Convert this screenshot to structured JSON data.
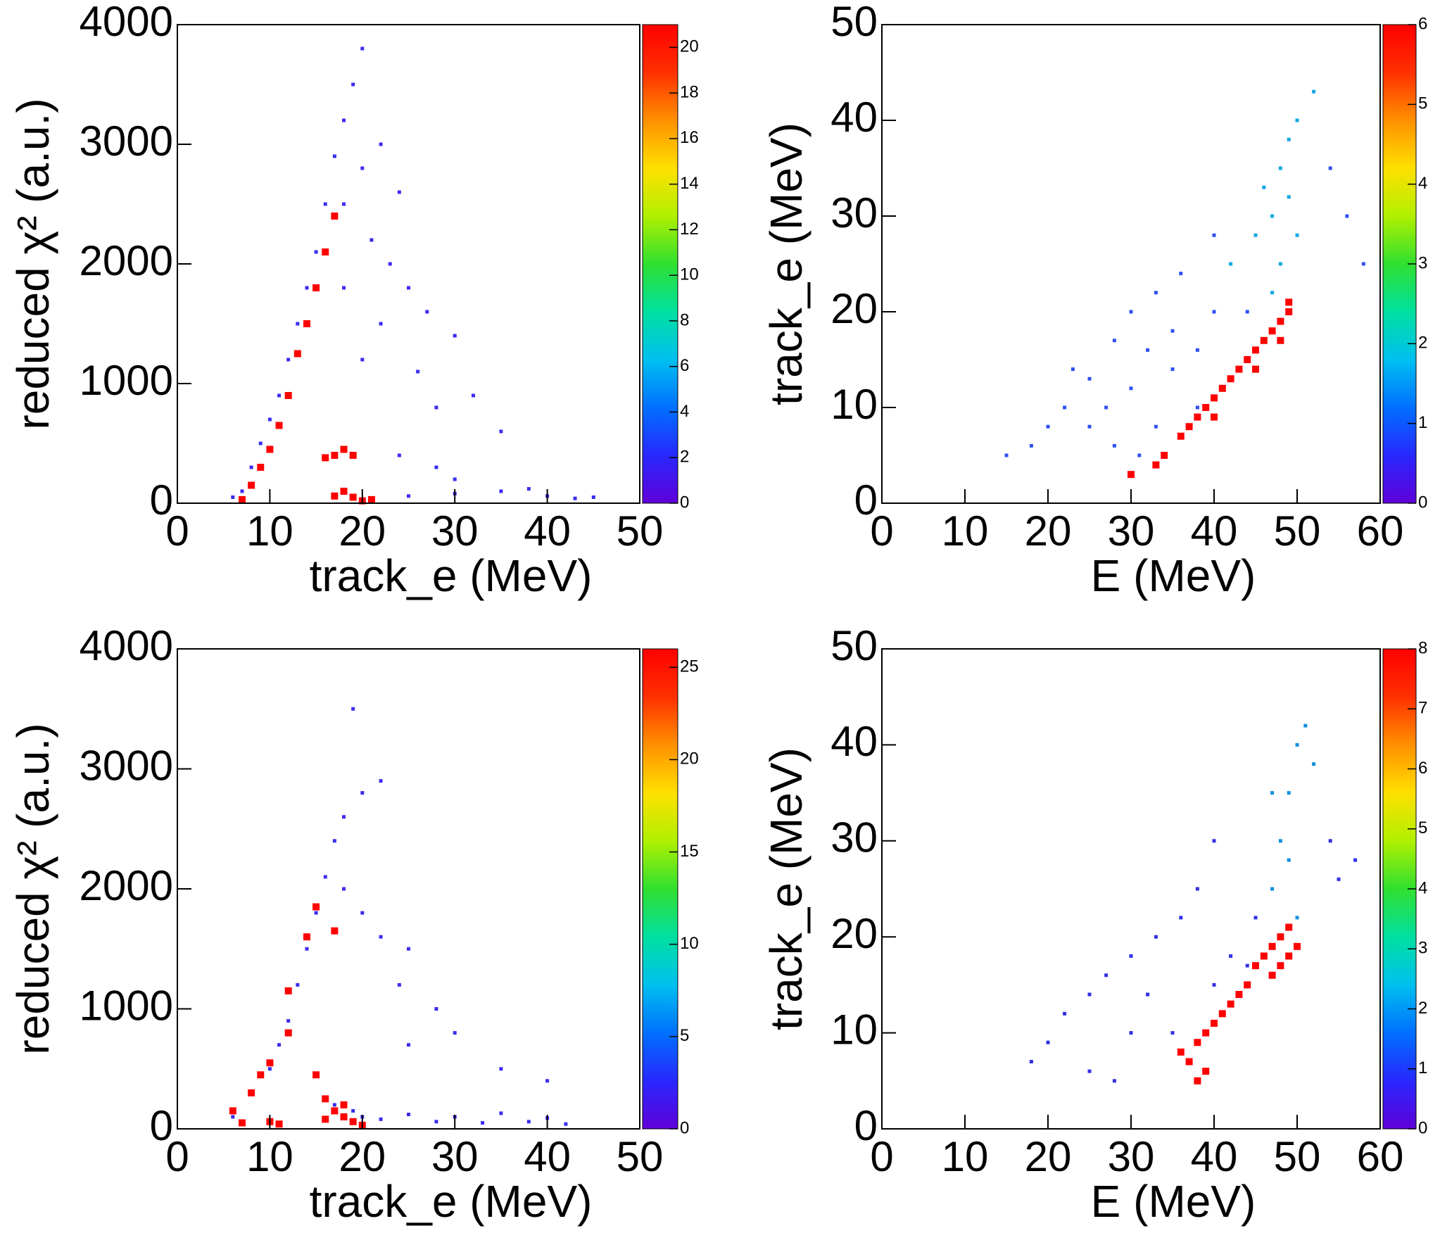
{
  "chart_data": [
    {
      "type": "scatter",
      "xlabel": "track_e (MeV)",
      "ylabel": "reduced χ² (a.u.)",
      "xlim": [
        0,
        50
      ],
      "ylim": [
        0,
        4000
      ],
      "xticks": [
        0,
        10,
        20,
        30,
        40,
        50
      ],
      "yticks": [
        0,
        1000,
        2000,
        3000,
        4000
      ],
      "zlim": [
        0,
        21
      ],
      "zticks": [
        0,
        2,
        4,
        6,
        8,
        10,
        12,
        14,
        16,
        18,
        20
      ],
      "colormap": [
        "#6000d8",
        "#2828ff",
        "#0070ff",
        "#00c0f0",
        "#00e0a0",
        "#30e030",
        "#b0f000",
        "#ffe000",
        "#ff9000",
        "#ff3000",
        "#ff0000"
      ],
      "series": [
        {
          "color": "#3c2cf0",
          "x": [
            6,
            7,
            8,
            9,
            10,
            11,
            12,
            13,
            14,
            15,
            16,
            17,
            18,
            19,
            20,
            18,
            20,
            22,
            24,
            21,
            23,
            25,
            27,
            30,
            22,
            26,
            28,
            32,
            35,
            24,
            28,
            30,
            25,
            30,
            35,
            40,
            43,
            38,
            20,
            18,
            45
          ],
          "values": [
            50,
            100,
            300,
            500,
            700,
            900,
            1200,
            1500,
            1800,
            2100,
            2500,
            2900,
            3200,
            3500,
            3800,
            2500,
            2800,
            3000,
            2600,
            2200,
            2000,
            1800,
            1600,
            1400,
            1500,
            1100,
            800,
            900,
            600,
            400,
            300,
            200,
            60,
            80,
            100,
            60,
            40,
            120,
            1200,
            1800,
            50
          ]
        },
        {
          "color": "#ff0000",
          "x": [
            7,
            8,
            9,
            10,
            11,
            12,
            13,
            14,
            15,
            16,
            17,
            17,
            18,
            19,
            16,
            18,
            19,
            20,
            21,
            17
          ],
          "values": [
            30,
            150,
            300,
            450,
            650,
            900,
            1250,
            1500,
            1800,
            2100,
            2400,
            400,
            450,
            400,
            380,
            100,
            50,
            20,
            30,
            60
          ]
        }
      ]
    },
    {
      "type": "scatter",
      "xlabel": "E (MeV)",
      "ylabel": "track_e (MeV)",
      "xlim": [
        0,
        60
      ],
      "ylim": [
        0,
        50
      ],
      "xticks": [
        0,
        10,
        20,
        30,
        40,
        50,
        60
      ],
      "yticks": [
        0,
        10,
        20,
        30,
        40,
        50
      ],
      "zlim": [
        0,
        6
      ],
      "zticks": [
        0,
        1,
        2,
        3,
        4,
        5,
        6
      ],
      "colormap": [
        "#6000d8",
        "#2828ff",
        "#0070ff",
        "#00c0f0",
        "#00e0a0",
        "#30e030",
        "#b0f000",
        "#ffe000",
        "#ff9000",
        "#ff3000",
        "#ff0000"
      ],
      "series": [
        {
          "color": "#3050f0",
          "x": [
            15,
            18,
            20,
            22,
            25,
            28,
            30,
            33,
            35,
            30,
            27,
            35,
            38,
            40,
            33,
            38,
            25,
            23,
            32,
            44,
            54,
            56,
            58,
            40,
            36,
            31,
            28
          ],
          "values": [
            5,
            6,
            8,
            10,
            13,
            17,
            20,
            22,
            18,
            12,
            10,
            14,
            16,
            20,
            8,
            10,
            8,
            14,
            16,
            20,
            35,
            30,
            25,
            28,
            24,
            5,
            6
          ]
        },
        {
          "color": "#10a8e0",
          "x": [
            42,
            45,
            47,
            48,
            49,
            50,
            52,
            48,
            47,
            50,
            46,
            49
          ],
          "values": [
            25,
            28,
            30,
            35,
            38,
            40,
            43,
            25,
            22,
            28,
            33,
            32
          ]
        },
        {
          "color": "#ff0000",
          "x": [
            30,
            33,
            34,
            36,
            37,
            38,
            39,
            40,
            41,
            42,
            43,
            44,
            45,
            46,
            47,
            48,
            49,
            49,
            48,
            45,
            40
          ],
          "values": [
            3,
            4,
            5,
            7,
            8,
            9,
            10,
            11,
            12,
            13,
            14,
            15,
            16,
            17,
            18,
            19,
            20,
            21,
            17,
            14,
            9
          ]
        }
      ]
    },
    {
      "type": "scatter",
      "xlabel": "track_e (MeV)",
      "ylabel": "reduced χ² (a.u.)",
      "xlim": [
        0,
        50
      ],
      "ylim": [
        0,
        4000
      ],
      "xticks": [
        0,
        10,
        20,
        30,
        40,
        50
      ],
      "yticks": [
        0,
        1000,
        2000,
        3000,
        4000
      ],
      "zlim": [
        0,
        26
      ],
      "zticks": [
        0,
        5,
        10,
        15,
        20,
        25
      ],
      "colormap": [
        "#6000d8",
        "#2828ff",
        "#0070ff",
        "#00c0f0",
        "#00e0a0",
        "#30e030",
        "#b0f000",
        "#ffe000",
        "#ff9000",
        "#ff3000",
        "#ff0000"
      ],
      "series": [
        {
          "color": "#3c2cf0",
          "x": [
            6,
            8,
            10,
            11,
            12,
            13,
            14,
            15,
            16,
            17,
            18,
            20,
            22,
            19,
            18,
            20,
            22,
            25,
            24,
            28,
            30,
            35,
            40,
            25,
            20,
            25,
            30,
            35,
            40,
            42,
            17,
            19,
            22,
            28,
            33,
            38
          ],
          "values": [
            100,
            300,
            500,
            700,
            900,
            1200,
            1500,
            1800,
            2100,
            2400,
            2600,
            2800,
            2900,
            3500,
            2000,
            1800,
            1600,
            1500,
            1200,
            1000,
            800,
            500,
            400,
            700,
            100,
            120,
            100,
            130,
            90,
            40,
            200,
            150,
            80,
            60,
            50,
            60
          ]
        },
        {
          "color": "#ff0000",
          "x": [
            6,
            7,
            8,
            9,
            10,
            12,
            12,
            14,
            15,
            17,
            16,
            17,
            18,
            19,
            20,
            16,
            10,
            11,
            15,
            18
          ],
          "values": [
            150,
            50,
            300,
            450,
            550,
            800,
            1150,
            1600,
            1850,
            1650,
            80,
            150,
            100,
            60,
            30,
            250,
            60,
            40,
            450,
            200
          ]
        }
      ]
    },
    {
      "type": "scatter",
      "xlabel": "E (MeV)",
      "ylabel": "track_e (MeV)",
      "xlim": [
        0,
        60
      ],
      "ylim": [
        0,
        50
      ],
      "xticks": [
        0,
        10,
        20,
        30,
        40,
        50,
        60
      ],
      "yticks": [
        0,
        10,
        20,
        30,
        40,
        50
      ],
      "zlim": [
        0,
        8
      ],
      "zticks": [
        0,
        1,
        2,
        3,
        4,
        5,
        6,
        7,
        8
      ],
      "colormap": [
        "#6000d8",
        "#2828ff",
        "#0070ff",
        "#00c0f0",
        "#00e0a0",
        "#30e030",
        "#b0f000",
        "#ffe000",
        "#ff9000",
        "#ff3000",
        "#ff0000"
      ],
      "series": [
        {
          "color": "#3030e8",
          "x": [
            18,
            20,
            22,
            25,
            27,
            30,
            33,
            36,
            38,
            40,
            30,
            25,
            28,
            35,
            32,
            40,
            42,
            44,
            45,
            54,
            55,
            57
          ],
          "values": [
            7,
            9,
            12,
            14,
            16,
            18,
            20,
            22,
            25,
            30,
            10,
            6,
            5,
            10,
            14,
            15,
            18,
            17,
            22,
            30,
            26,
            28
          ]
        },
        {
          "color": "#1090e0",
          "x": [
            47,
            48,
            49,
            50,
            51,
            52,
            48,
            49,
            50,
            47
          ],
          "values": [
            25,
            30,
            35,
            40,
            42,
            38,
            20,
            28,
            22,
            35
          ]
        },
        {
          "color": "#ff0000",
          "x": [
            36,
            37,
            38,
            39,
            40,
            41,
            42,
            43,
            44,
            45,
            46,
            47,
            48,
            49,
            47,
            48,
            49,
            50,
            38,
            39
          ],
          "values": [
            8,
            7,
            9,
            10,
            11,
            12,
            13,
            14,
            15,
            17,
            18,
            19,
            20,
            21,
            16,
            17,
            18,
            19,
            5,
            6
          ]
        }
      ]
    }
  ]
}
